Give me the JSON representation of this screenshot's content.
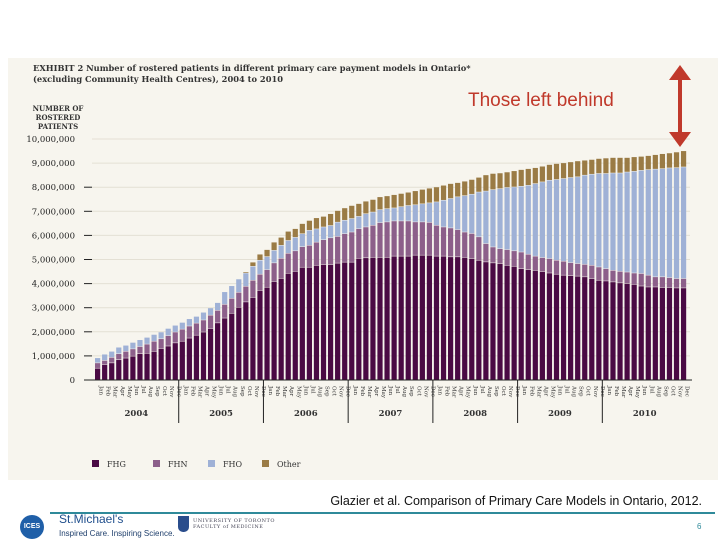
{
  "slide": {
    "annotation": "Those left behind",
    "citation": "Glazier et al. Comparison of Primary Care Models in Ontario, 2012.",
    "page_number": "6",
    "footer": {
      "ices_logo": "ICES",
      "stmichaels_name": "St.Michael's",
      "stmichaels_tagline": "Inspired Care. Inspiring Science.",
      "uoft_line1": "UNIVERSITY OF TORONTO",
      "uoft_line2": "FACULTY of MEDICINE"
    },
    "colors": {
      "annotation": "#c0392b",
      "footer_rule": "#2f8a9a"
    },
    "arrow_icon": "double-headed-vertical-arrow"
  },
  "chart_data": {
    "type": "bar",
    "stacked": true,
    "title": "EXHIBIT 2 Number of rostered patients in different primary care payment models in Ontario* (excluding Community Health Centres), 2004 to 2010",
    "title_line1": "EXHIBIT 2 Number of rostered patients in different primary care payment models in Ontario*",
    "title_line2": "(excluding Community Health Centres), 2004 to 2010",
    "ylabel_line1": "NUMBER OF",
    "ylabel_line2": "ROSTERED PATIENTS",
    "xlabel": "",
    "ylim": [
      0,
      10000000
    ],
    "yticks": [
      "0",
      "1,000,000",
      "2,000,000",
      "3,000,000",
      "4,000,000",
      "5,000,000",
      "6,000,000",
      "7,000,000",
      "8,000,000",
      "9,000,000",
      "10,000,000"
    ],
    "grid": true,
    "legend_position": "bottom",
    "month_labels": [
      "Jan",
      "Feb",
      "Mar",
      "Apr",
      "May",
      "Jun",
      "Jul",
      "Aug",
      "Sep",
      "Oct",
      "Nov",
      "Dec"
    ],
    "years": [
      "2004",
      "2005",
      "2006",
      "2007",
      "2008",
      "2009",
      "2010"
    ],
    "series": [
      {
        "name": "FHG",
        "color": "#4a0a44",
        "values": [
          500000,
          650000,
          720000,
          850000,
          920000,
          1000000,
          1100000,
          1120000,
          1200000,
          1320000,
          1420000,
          1550000,
          1620000,
          1750000,
          1870000,
          2000000,
          2150000,
          2380000,
          2580000,
          2780000,
          3030000,
          3250000,
          3440000,
          3730000,
          3860000,
          4100000,
          4230000,
          4440000,
          4520000,
          4690000,
          4690000,
          4770000,
          4800000,
          4800000,
          4860000,
          4900000,
          4900000,
          5060000,
          5080000,
          5100000,
          5100000,
          5100000,
          5150000,
          5150000,
          5150000,
          5190000,
          5190000,
          5190000,
          5150000,
          5150000,
          5120000,
          5120000,
          5100000,
          5050000,
          4980000,
          4910000,
          4870000,
          4840000,
          4770000,
          4730000,
          4630000,
          4590000,
          4560000,
          4510000,
          4450000,
          4400000,
          4360000,
          4340000,
          4320000,
          4290000,
          4220000,
          4150000,
          4120000,
          4080000,
          4040000,
          4010000,
          3980000,
          3910000,
          3870000,
          3870000,
          3850000,
          3850000,
          3830000,
          3830000
        ]
      },
      {
        "name": "FHN",
        "color": "#8c5f8a",
        "values": [
          220000,
          170000,
          230000,
          250000,
          280000,
          300000,
          300000,
          380000,
          420000,
          400000,
          430000,
          450000,
          500000,
          500000,
          500000,
          500000,
          550000,
          520000,
          570000,
          620000,
          620000,
          650000,
          710000,
          670000,
          730000,
          770000,
          830000,
          830000,
          850000,
          850000,
          910000,
          960000,
          1030000,
          1110000,
          1110000,
          1180000,
          1250000,
          1230000,
          1280000,
          1330000,
          1440000,
          1470000,
          1460000,
          1460000,
          1460000,
          1380000,
          1380000,
          1360000,
          1280000,
          1210000,
          1200000,
          1130000,
          1050000,
          1040000,
          970000,
          760000,
          660000,
          620000,
          650000,
          640000,
          690000,
          640000,
          590000,
          580000,
          600000,
          580000,
          580000,
          540000,
          520000,
          520000,
          550000,
          550000,
          510000,
          480000,
          480000,
          480000,
          470000,
          520000,
          490000,
          420000,
          440000,
          410000,
          390000,
          390000
        ]
      },
      {
        "name": "FHO",
        "color": "#9fb1d6",
        "values": [
          210000,
          260000,
          250000,
          270000,
          250000,
          270000,
          280000,
          280000,
          280000,
          280000,
          300000,
          280000,
          280000,
          300000,
          280000,
          320000,
          300000,
          320000,
          520000,
          520000,
          550000,
          550000,
          580000,
          580000,
          540000,
          520000,
          540000,
          530000,
          560000,
          540000,
          620000,
          550000,
          530000,
          510000,
          590000,
          560000,
          560000,
          510000,
          550000,
          550000,
          540000,
          550000,
          540000,
          590000,
          640000,
          710000,
          750000,
          810000,
          970000,
          1110000,
          1220000,
          1360000,
          1510000,
          1630000,
          1860000,
          2180000,
          2380000,
          2490000,
          2580000,
          2650000,
          2730000,
          2860000,
          3010000,
          3140000,
          3250000,
          3350000,
          3430000,
          3530000,
          3600000,
          3700000,
          3780000,
          3880000,
          3950000,
          4040000,
          4080000,
          4150000,
          4220000,
          4280000,
          4380000,
          4470000,
          4490000,
          4550000,
          4600000,
          4630000
        ]
      },
      {
        "name": "Other",
        "color": "#9a7b45",
        "values": [
          0,
          0,
          0,
          0,
          0,
          0,
          0,
          0,
          0,
          0,
          0,
          0,
          0,
          0,
          0,
          0,
          0,
          0,
          0,
          0,
          0,
          50000,
          170000,
          250000,
          290000,
          340000,
          330000,
          380000,
          360000,
          420000,
          410000,
          460000,
          440000,
          490000,
          480000,
          510000,
          540000,
          530000,
          520000,
          520000,
          530000,
          530000,
          550000,
          550000,
          550000,
          580000,
          600000,
          610000,
          620000,
          620000,
          620000,
          590000,
          600000,
          610000,
          610000,
          670000,
          670000,
          650000,
          640000,
          670000,
          690000,
          690000,
          660000,
          650000,
          650000,
          660000,
          650000,
          650000,
          660000,
          620000,
          610000,
          620000,
          640000,
          640000,
          640000,
          600000,
          600000,
          580000,
          580000,
          600000,
          620000,
          620000,
          650000,
          670000
        ]
      }
    ]
  }
}
